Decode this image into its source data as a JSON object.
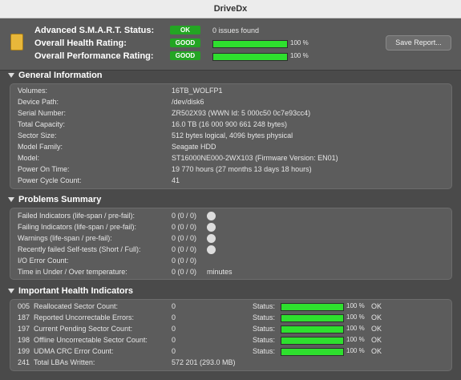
{
  "window_title": "DriveDx",
  "header": {
    "rows": [
      {
        "label": "Advanced S.M.A.R.T. Status:",
        "status": "OK",
        "text": "0 issues found"
      },
      {
        "label": "Overall Health Rating:",
        "status": "GOOD",
        "percent": 100,
        "percent_label": "100 %"
      },
      {
        "label": "Overall Performance Rating:",
        "status": "GOOD",
        "percent": 100,
        "percent_label": "100 %"
      }
    ],
    "button": "Save Report..."
  },
  "general": {
    "title": "General Information",
    "rows": [
      [
        "Volumes:",
        "16TB_WOLFP1"
      ],
      [
        "Device Path:",
        "/dev/disk6"
      ],
      [
        "Serial Number:",
        "ZR502X93 (WWN Id: 5 000c50 0c7e93cc4)"
      ],
      [
        "Total Capacity:",
        "16.0 TB (16 000 900 661 248 bytes)"
      ],
      [
        "Sector Size:",
        "512 bytes logical, 4096 bytes physical"
      ],
      [
        "Model Family:",
        "Seagate HDD"
      ],
      [
        "Model:",
        "ST16000NE000-2WX103  (Firmware Version: EN01)"
      ],
      [
        "Power On Time:",
        "19 770 hours (27 months 13 days 18 hours)"
      ],
      [
        "Power Cycle Count:",
        "41"
      ]
    ]
  },
  "problems": {
    "title": "Problems Summary",
    "rows": [
      {
        "label": "Failed Indicators (life-span / pre-fail):",
        "value": "0 (0 / 0)",
        "details_button": true
      },
      {
        "label": "Failing Indicators (life-span / pre-fail):",
        "value": "0 (0 / 0)",
        "details_button": true
      },
      {
        "label": "Warnings (life-span / pre-fail):",
        "value": "0 (0 / 0)",
        "details_button": true
      },
      {
        "label": "Recently failed Self-tests (Short / Full):",
        "value": "0 (0 / 0)",
        "details_button": true
      },
      {
        "label": "I/O Error Count:",
        "value": "0 (0 / 0)"
      },
      {
        "label": "Time in Under / Over temperature:",
        "value": "0 (0 / 0)",
        "unit": "minutes"
      }
    ]
  },
  "indicators": {
    "title": "Important Health Indicators",
    "status_label": "Status:",
    "rows": [
      {
        "id": "005",
        "name": "Reallocated Sector Count:",
        "value": "0",
        "percent": 100,
        "percent_label": "100 %",
        "status": "OK"
      },
      {
        "id": "187",
        "name": "Reported Uncorrectable Errors:",
        "value": "0",
        "percent": 100,
        "percent_label": "100 %",
        "status": "OK"
      },
      {
        "id": "197",
        "name": "Current Pending Sector Count:",
        "value": "0",
        "percent": 100,
        "percent_label": "100 %",
        "status": "OK"
      },
      {
        "id": "198",
        "name": "Offline Uncorrectable Sector Count:",
        "value": "0",
        "percent": 100,
        "percent_label": "100 %",
        "status": "OK"
      },
      {
        "id": "199",
        "name": "UDMA CRC Error Count:",
        "value": "0",
        "percent": 100,
        "percent_label": "100 %",
        "status": "OK"
      },
      {
        "id": "241",
        "name": "Total LBAs Written:",
        "value": "572 201 (293.0 MB)"
      }
    ]
  }
}
